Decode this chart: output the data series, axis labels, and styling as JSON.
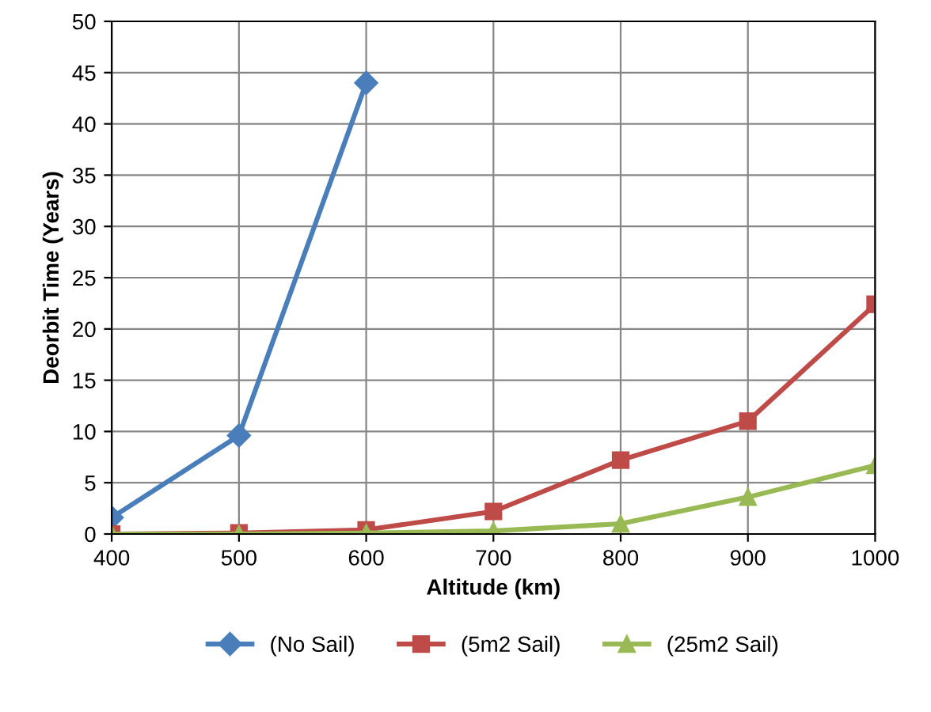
{
  "chart_data": {
    "type": "line",
    "xlabel": "Altitude (km)",
    "ylabel": "Deorbit Time (Years)",
    "x": [
      400,
      500,
      600,
      700,
      800,
      900,
      1000
    ],
    "xlim": [
      400,
      1000
    ],
    "xticks": [
      400,
      500,
      600,
      700,
      800,
      900,
      1000
    ],
    "ylim": [
      0,
      50
    ],
    "yticks": [
      0,
      5,
      10,
      15,
      20,
      25,
      30,
      35,
      40,
      45,
      50
    ],
    "grid": true,
    "legend": "bottom",
    "series": [
      {
        "name": "(No Sail)",
        "color": "#4a7ebb",
        "marker": "diamond",
        "values": [
          1.6,
          9.6,
          44,
          null,
          null,
          null,
          null
        ]
      },
      {
        "name": "(5m2 Sail)",
        "color": "#be4b48",
        "marker": "square",
        "values": [
          0,
          0.1,
          0.4,
          2.2,
          7.2,
          11,
          22.4
        ]
      },
      {
        "name": "(25m2 Sail)",
        "color": "#98b954",
        "marker": "triangle",
        "values": [
          0,
          0,
          0.1,
          0.3,
          1.0,
          3.6,
          6.7
        ]
      }
    ]
  }
}
